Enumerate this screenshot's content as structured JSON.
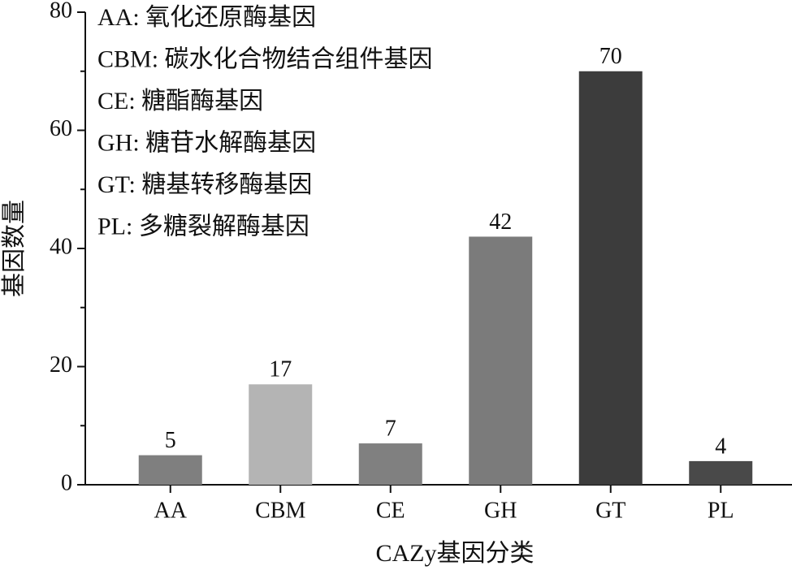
{
  "chart_data": {
    "type": "bar",
    "x_label": "CAZy基因分类",
    "y_label": "基因数量",
    "annotations": [
      "AA: 氧化还原酶基因",
      "CBM: 碳水化合物结合组件基因",
      "CE: 糖酯酶基因",
      "GH: 糖苷水解酶基因",
      "GT: 糖基转移酶基因",
      "PL: 多糖裂解酶基因"
    ],
    "categories": [
      "AA",
      "CBM",
      "CE",
      "GH",
      "GT",
      "PL"
    ],
    "values": [
      5,
      17,
      7,
      42,
      70,
      4
    ],
    "colors": [
      "#7f7f7f",
      "#b4b4b4",
      "#808080",
      "#7b7b7b",
      "#3c3c3c",
      "#494949"
    ],
    "ylim": [
      0,
      80
    ],
    "yticks": [
      0,
      20,
      40,
      60,
      80
    ],
    "minor_yticks": [
      10,
      30,
      50,
      70
    ],
    "grid": false
  }
}
